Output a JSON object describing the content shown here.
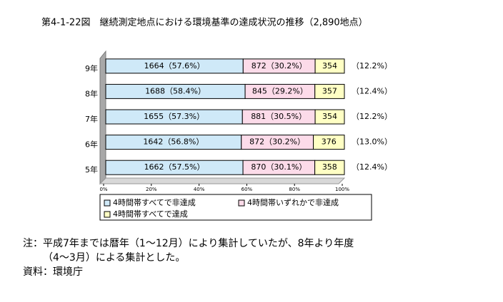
{
  "chart_data": {
    "type": "stacked_barh",
    "title": "第4-1-22図　継続測定地点における環境基準の達成状況の推移（2,890地点）",
    "categories": [
      "9年",
      "8年",
      "7年",
      "6年",
      "5年"
    ],
    "series": [
      {
        "name": "4時間帯すべてで非達成",
        "color": "#cfe9f8",
        "values": [
          1664,
          1688,
          1655,
          1642,
          1662
        ],
        "value_labels": [
          "1664（57.6%）",
          "1688（58.4%）",
          "1655（57.3%）",
          "1642（56.8%）",
          "1662（57.5%）"
        ]
      },
      {
        "name": "4時間帯いずれかで非達成",
        "color": "#fcdbe9",
        "values": [
          872,
          845,
          881,
          872,
          870
        ],
        "value_labels": [
          "872（30.2%）",
          "845（29.2%）",
          "881（30.5%）",
          "872（30.2%）",
          "870（30.1%）"
        ]
      },
      {
        "name": "4時間帯すべてで達成",
        "color": "#ffffc4",
        "values": [
          354,
          357,
          354,
          376,
          358
        ],
        "outer_labels": [
          "（12.2%）",
          "（12.4%）",
          "（12.2%）",
          "（13.0%）",
          "（12.4%）"
        ]
      }
    ],
    "xlim": [
      0,
      2890
    ],
    "xticks": [
      {
        "value": 0,
        "label": "0%"
      },
      {
        "value": 578,
        "label": "20%"
      },
      {
        "value": 1156,
        "label": "40%"
      },
      {
        "value": 1734,
        "label": "60%"
      },
      {
        "value": 2312,
        "label": "80%"
      },
      {
        "value": 2890,
        "label": "100%"
      }
    ],
    "notes": [
      "注：平成7年までは暦年（1～12月）により集計していたが、8年より年度",
      "（4～3月）による集計とした。",
      "資料：環境庁"
    ]
  }
}
